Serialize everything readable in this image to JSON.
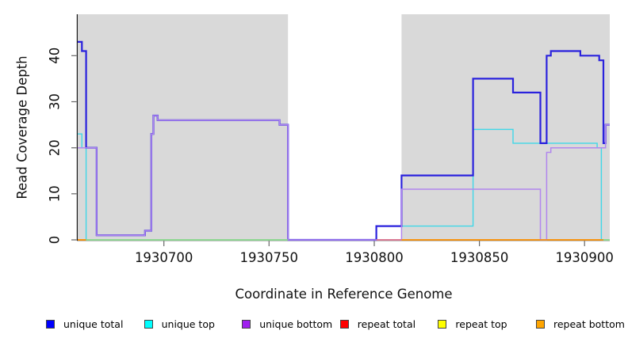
{
  "chart_data": {
    "type": "line",
    "step": true,
    "title": "",
    "xlabel": "Coordinate in Reference Genome",
    "ylabel": "Read Coverage Depth",
    "xlim": [
      1930659,
      1930912
    ],
    "ylim": [
      0,
      49
    ],
    "x_ticks": [
      1930700,
      1930750,
      1930800,
      1930850,
      1930900
    ],
    "y_ticks": [
      0,
      10,
      20,
      30,
      40
    ],
    "grid": false,
    "legend_position": "bottom",
    "background_shading": {
      "color": "#d9d9d9",
      "regions": [
        {
          "from": 1930659,
          "to": 1930759
        },
        {
          "from": 1930813,
          "to": 1930912
        }
      ]
    },
    "render_colors": {
      "axis": "#1a1a1a",
      "tick": "#666666",
      "text": "#111111"
    },
    "series": [
      {
        "name": "unique total",
        "legend_color": "#0000ff",
        "line_color": "#2a22dd",
        "line_width": 2.2,
        "points": [
          [
            1930659,
            43
          ],
          [
            1930661,
            41
          ],
          [
            1930663,
            20
          ],
          [
            1930668,
            1
          ],
          [
            1930691,
            2
          ],
          [
            1930694,
            23
          ],
          [
            1930695,
            27
          ],
          [
            1930697,
            26
          ],
          [
            1930755,
            25
          ],
          [
            1930759,
            0
          ],
          [
            1930801,
            3
          ],
          [
            1930813,
            14
          ],
          [
            1930847,
            35
          ],
          [
            1930866,
            32
          ],
          [
            1930879,
            21
          ],
          [
            1930882,
            40
          ],
          [
            1930884,
            41
          ],
          [
            1930898,
            40
          ],
          [
            1930907,
            39
          ],
          [
            1930909,
            21
          ],
          [
            1930910,
            25
          ],
          [
            1930912,
            25
          ]
        ]
      },
      {
        "name": "unique top",
        "legend_color": "#00ffff",
        "line_color": "#3fd8e8",
        "line_width": 1.4,
        "points": [
          [
            1930659,
            23
          ],
          [
            1930661,
            20
          ],
          [
            1930663,
            0
          ],
          [
            1930801,
            3
          ],
          [
            1930847,
            24
          ],
          [
            1930866,
            21
          ],
          [
            1930906,
            20
          ],
          [
            1930908,
            0
          ],
          [
            1930912,
            0
          ]
        ]
      },
      {
        "name": "unique bottom",
        "legend_color": "#a020f0",
        "line_color": "#b186ee",
        "line_width": 1.5,
        "points": [
          [
            1930659,
            20
          ],
          [
            1930668,
            1
          ],
          [
            1930691,
            2
          ],
          [
            1930694,
            23
          ],
          [
            1930695,
            27
          ],
          [
            1930697,
            26
          ],
          [
            1930755,
            25
          ],
          [
            1930759,
            0
          ],
          [
            1930813,
            11
          ],
          [
            1930879,
            0
          ],
          [
            1930882,
            19
          ],
          [
            1930884,
            20
          ],
          [
            1930910,
            25
          ],
          [
            1930912,
            25
          ]
        ]
      },
      {
        "name": "repeat total",
        "legend_color": "#ff0000",
        "line_color": "#e07090",
        "line_width": 1.3,
        "points": [
          [
            1930659,
            0
          ],
          [
            1930912,
            0
          ]
        ]
      },
      {
        "name": "repeat top",
        "legend_color": "#ffff00",
        "line_color": "#8fe08f",
        "line_width": 1.3,
        "points": [
          [
            1930659,
            0
          ],
          [
            1930912,
            0
          ]
        ]
      },
      {
        "name": "repeat bottom",
        "legend_color": "#ffa500",
        "line_color": "#ff9100",
        "line_width": 1.5,
        "points": [
          [
            1930659,
            0
          ],
          [
            1930912,
            0
          ]
        ]
      }
    ],
    "baseline_overlap_segments": [
      {
        "from": 1930659,
        "to": 1930663,
        "color": "#ff9100"
      },
      {
        "from": 1930663,
        "to": 1930759,
        "color": "#8fe08f"
      },
      {
        "from": 1930801,
        "to": 1930813,
        "color": "#e07090"
      },
      {
        "from": 1930813,
        "to": 1930909,
        "color": "#ff9100"
      },
      {
        "from": 1930909,
        "to": 1930912,
        "color": "#8fe08f"
      }
    ]
  }
}
